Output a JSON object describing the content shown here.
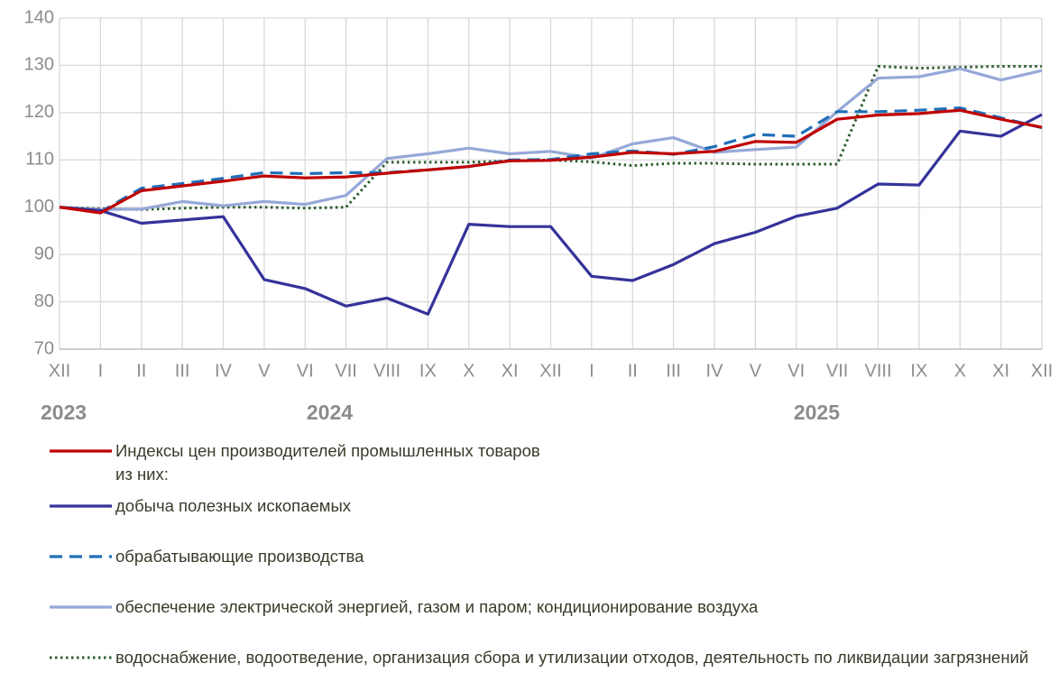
{
  "chart_data": {
    "type": "line",
    "categories": [
      "XII",
      "I",
      "II",
      "III",
      "IV",
      "V",
      "VI",
      "VII",
      "VIII",
      "IX",
      "X",
      "XI",
      "XII",
      "I",
      "II",
      "III",
      "IV",
      "V",
      "VI",
      "VII",
      "VIII",
      "IX",
      "X",
      "XI",
      "XII"
    ],
    "years": [
      "2023",
      "2024",
      "2025"
    ],
    "ylim": [
      70,
      140
    ],
    "yticks": [
      70,
      80,
      90,
      100,
      110,
      120,
      130,
      140
    ],
    "grid": true,
    "legend_note": "из них:",
    "series": [
      {
        "name": "Индексы цен производителей промышленных товаров",
        "color": "#c00000",
        "style": "solid",
        "values": [
          100,
          98.8,
          103.5,
          104.5,
          105.5,
          106.6,
          106.2,
          106.4,
          107.2,
          107.9,
          108.6,
          109.8,
          109.9,
          110.6,
          111.6,
          111.3,
          111.8,
          113.9,
          113.7,
          118.6,
          119.5,
          119.8,
          120.5,
          118.6,
          116.9
        ]
      },
      {
        "name": "добыча полезных ископаемых",
        "color": "#34339a",
        "style": "solid",
        "values": [
          100,
          99.3,
          96.6,
          97.3,
          98.0,
          84.7,
          82.8,
          79.1,
          80.8,
          77.4,
          96.4,
          95.9,
          95.9,
          85.4,
          84.5,
          87.9,
          92.3,
          94.7,
          98.1,
          99.8,
          104.9,
          104.7,
          116.1,
          115.0,
          119.6
        ]
      },
      {
        "name": "обрабатывающие  производства",
        "color": "#1f6fb8",
        "style": "dashed",
        "values": [
          100,
          99.0,
          104.0,
          105.0,
          106.1,
          107.3,
          107.1,
          107.3,
          107.3,
          107.9,
          108.6,
          110.0,
          110.1,
          111.3,
          111.9,
          111.2,
          112.8,
          115.4,
          115.0,
          120.2,
          120.2,
          120.5,
          121.0,
          118.9,
          116.8
        ]
      },
      {
        "name": "обеспечение электрической энергией, газом и паром; кондиционирование  воздуха",
        "color": "#95a8d8",
        "style": "solid",
        "values": [
          100,
          99.5,
          99.6,
          101.2,
          100.3,
          101.2,
          100.6,
          102.5,
          110.3,
          111.3,
          112.5,
          111.3,
          111.8,
          110.4,
          113.4,
          114.7,
          111.6,
          112.2,
          112.7,
          120.2,
          127.3,
          127.6,
          129.3,
          126.9,
          128.9
        ]
      },
      {
        "name": "водоснабжение, водоотведение, организация сбора и утилизации  отходов, деятельность по ликвидации  загрязнений",
        "color": "#2e5e2e",
        "style": "dotted",
        "values": [
          100,
          99.7,
          99.5,
          99.8,
          100.0,
          100.0,
          99.8,
          100.0,
          109.5,
          109.5,
          109.5,
          109.8,
          110.0,
          109.6,
          108.8,
          109.3,
          109.3,
          109.1,
          109.1,
          109.1,
          129.8,
          129.4,
          129.6,
          129.8,
          129.8
        ]
      }
    ]
  }
}
